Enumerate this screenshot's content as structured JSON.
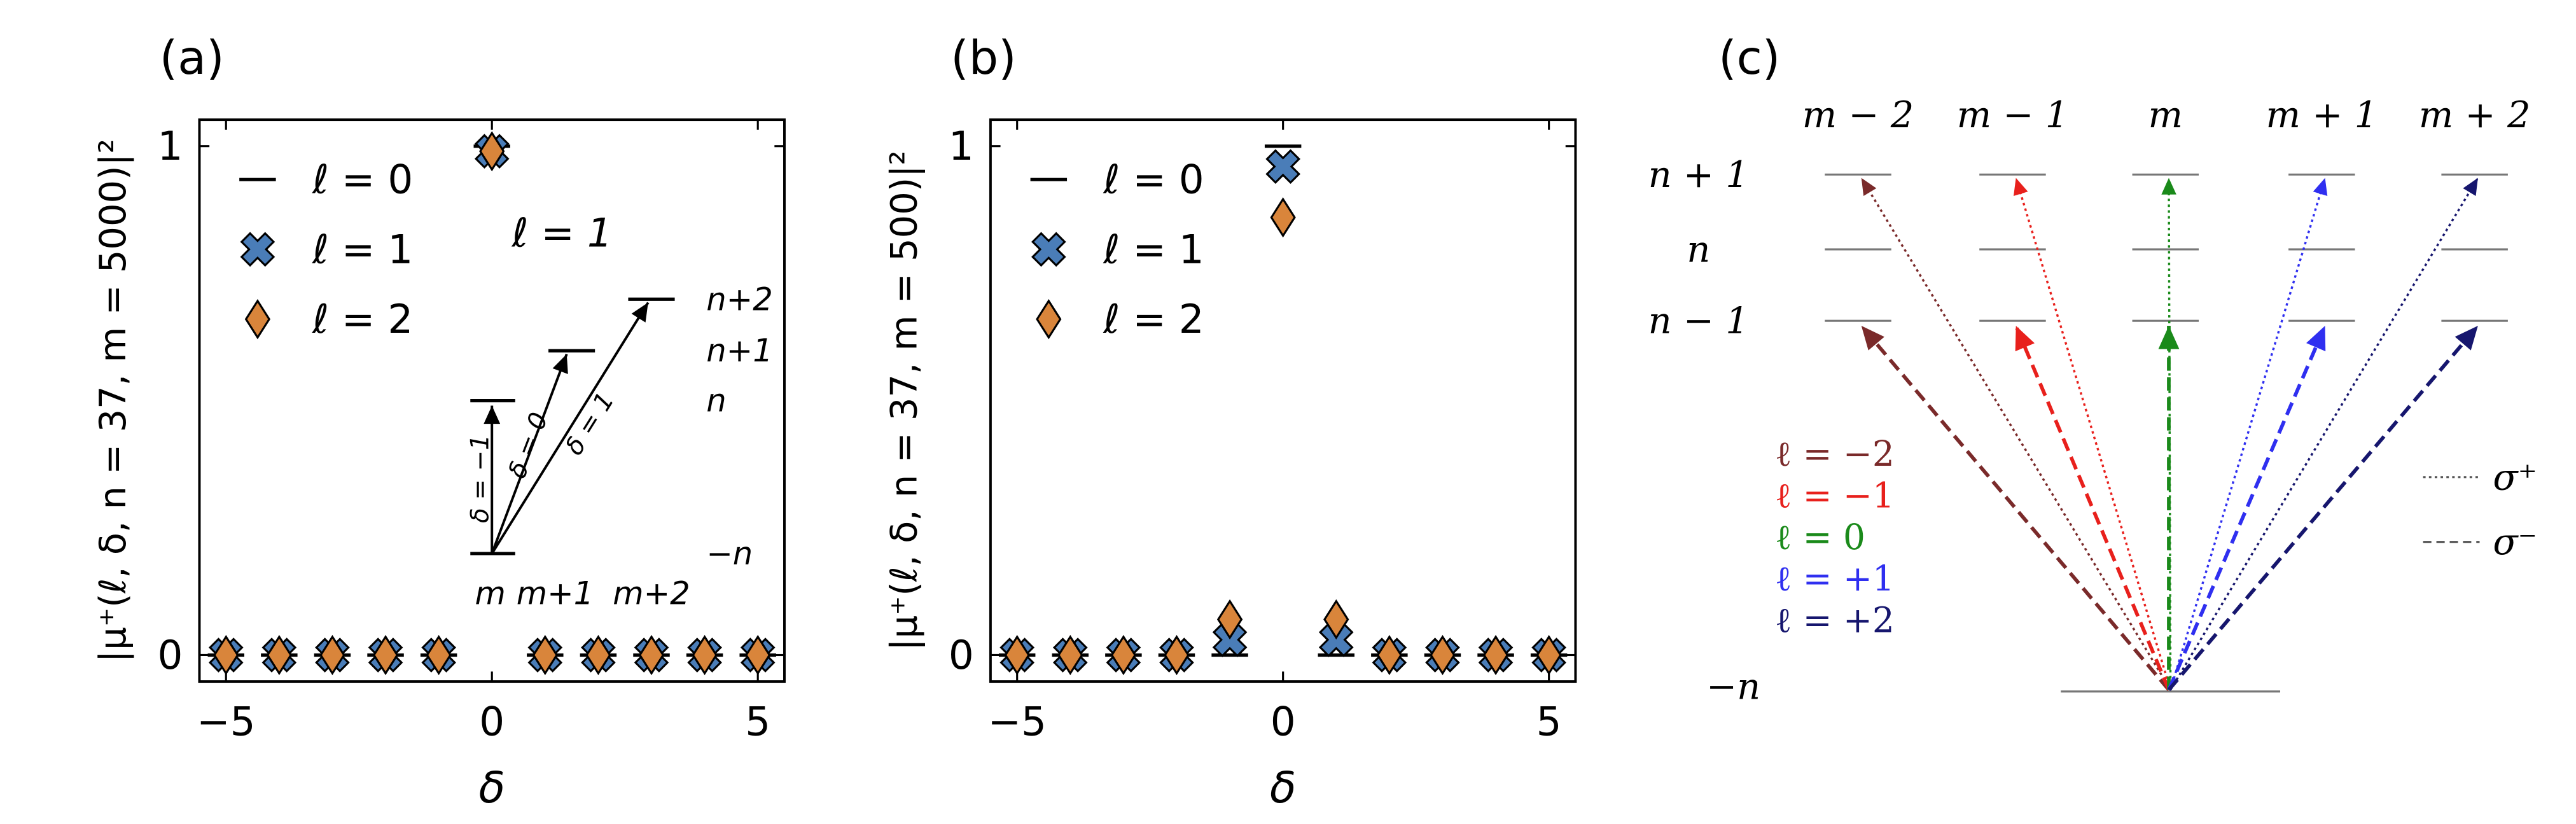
{
  "chart_data": [
    {
      "type": "scatter",
      "panel_label": "(a)",
      "y_label": "|μ⁺(ℓ, δ, n = 37, m = 5000)|²",
      "x_label": "δ",
      "x": [
        -5,
        -4,
        -3,
        -2,
        -1,
        0,
        1,
        2,
        3,
        4,
        5
      ],
      "series": [
        {
          "name": "ℓ = 0",
          "color": "#000000",
          "marker": "line",
          "values": [
            0,
            0,
            0,
            0,
            0,
            1,
            0,
            0,
            0,
            0,
            0
          ]
        },
        {
          "name": "ℓ = 1",
          "color": "#4a7db8",
          "marker": "X",
          "values": [
            0,
            0,
            0,
            0,
            0,
            0.99,
            0,
            0,
            0,
            0,
            0
          ]
        },
        {
          "name": "ℓ = 2",
          "color": "#d9853b",
          "marker": "diamond",
          "values": [
            0,
            0,
            0,
            0,
            0,
            0.99,
            0,
            0,
            0,
            0,
            0
          ]
        }
      ],
      "xlim": [
        -5.5,
        5.5
      ],
      "ylim": [
        -0.052,
        1.052
      ],
      "xticks": [
        {
          "value": -5,
          "label": "−5"
        },
        0,
        5
      ],
      "yticks": [
        0,
        1
      ],
      "legend": "upper left",
      "annotation": "ℓ = 1",
      "inset": {
        "level_labels": [
          "n+2",
          "n+1",
          "n",
          "−n"
        ],
        "column_labels": [
          "m",
          "m+1",
          "m+2"
        ],
        "arrow_labels": [
          "δ = −1",
          "δ = 0",
          "δ = 1"
        ]
      }
    },
    {
      "type": "scatter",
      "panel_label": "(b)",
      "y_label": "|μ⁺(ℓ, δ, n = 37, m = 500)|²",
      "x_label": "δ",
      "x": [
        -5,
        -4,
        -3,
        -2,
        -1,
        0,
        1,
        2,
        3,
        4,
        5
      ],
      "series": [
        {
          "name": "ℓ = 0",
          "color": "#000000",
          "marker": "line",
          "values": [
            0,
            0,
            0,
            0,
            0,
            1,
            0,
            0,
            0,
            0,
            0
          ]
        },
        {
          "name": "ℓ = 1",
          "color": "#4a7db8",
          "marker": "X",
          "values": [
            0,
            0,
            0,
            0,
            0.03,
            0.96,
            0.03,
            0,
            0,
            0,
            0
          ]
        },
        {
          "name": "ℓ = 2",
          "color": "#d9853b",
          "marker": "diamond",
          "values": [
            0,
            0,
            0,
            0,
            0.07,
            0.86,
            0.07,
            0,
            0,
            0,
            0
          ]
        }
      ],
      "xlim": [
        -5.5,
        5.5
      ],
      "ylim": [
        -0.052,
        1.052
      ],
      "xticks": [
        {
          "value": -5,
          "label": "−5"
        },
        0,
        5
      ],
      "yticks": [
        0,
        1
      ],
      "legend": "upper left"
    }
  ],
  "diagram": {
    "panel_label": "(c)",
    "columns": [
      "m − 2",
      "m − 1",
      "m",
      "m + 1",
      "m + 2"
    ],
    "rows": [
      "n + 1",
      "n",
      "n − 1"
    ],
    "ground": "−n",
    "transitions": [
      {
        "label": "ℓ = −2",
        "color": "#7a2a2a"
      },
      {
        "label": "ℓ = −1",
        "color": "#e8201c"
      },
      {
        "label": "ℓ = 0",
        "color": "#1a8a1a"
      },
      {
        "label": "ℓ = +1",
        "color": "#2f2ff0"
      },
      {
        "label": "ℓ = +2",
        "color": "#16166e"
      }
    ],
    "polarizations": [
      "σ⁺",
      "σ⁻"
    ]
  }
}
